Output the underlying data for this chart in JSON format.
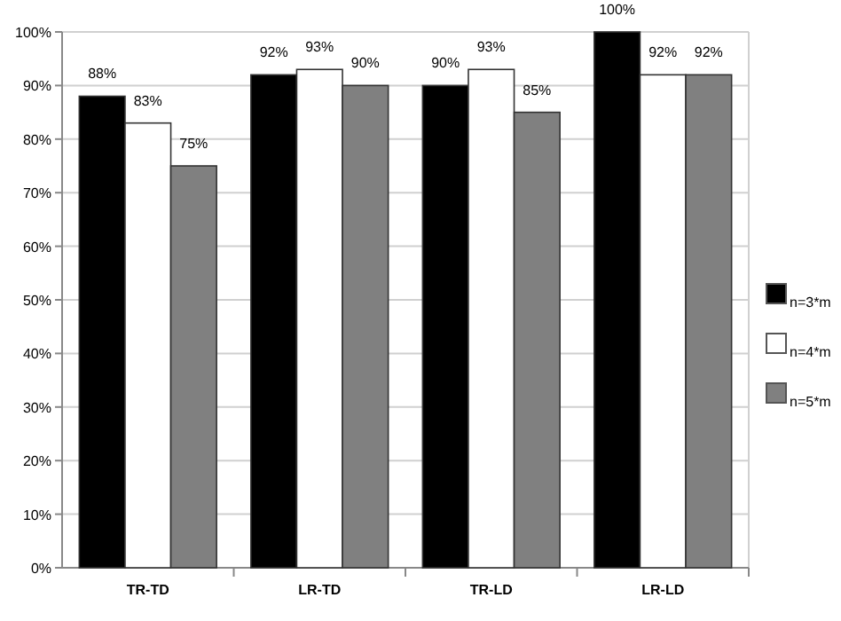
{
  "chart_data": {
    "type": "bar",
    "categories": [
      "TR-TD",
      "LR-TD",
      "TR-LD",
      "LR-LD"
    ],
    "series": [
      {
        "name": "n=3*m",
        "color": "#000000",
        "values": [
          88,
          92,
          90,
          100
        ],
        "value_labels": [
          "88%",
          "92%",
          "90%",
          "100%"
        ]
      },
      {
        "name": "n=4*m",
        "color": "#ffffff",
        "values": [
          83,
          93,
          93,
          92
        ],
        "value_labels": [
          "83%",
          "93%",
          "93%",
          "92%"
        ]
      },
      {
        "name": "n=5*m",
        "color": "#808080",
        "values": [
          75,
          90,
          85,
          92
        ],
        "value_labels": [
          "75%",
          "90%",
          "85%",
          "92%"
        ]
      }
    ],
    "ylim": [
      0,
      100
    ],
    "yticks": [
      {
        "value": 0,
        "label": "0%"
      },
      {
        "value": 10,
        "label": "10%"
      },
      {
        "value": 20,
        "label": "20%"
      },
      {
        "value": 30,
        "label": "30%"
      },
      {
        "value": 40,
        "label": "40%"
      },
      {
        "value": 50,
        "label": "50%"
      },
      {
        "value": 60,
        "label": "60%"
      },
      {
        "value": 70,
        "label": "70%"
      },
      {
        "value": 80,
        "label": "80%"
      },
      {
        "value": 90,
        "label": "90%"
      },
      {
        "value": 100,
        "label": "100%"
      }
    ],
    "grid": "y",
    "legend": "right"
  }
}
